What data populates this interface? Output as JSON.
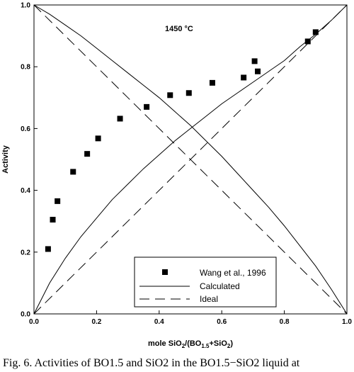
{
  "caption": "Fig. 6. Activities of BO1.5 and SiO2 in the BO1.5−SiO2 liquid at",
  "chart_data": {
    "type": "scatter",
    "annotation": "1450 °C",
    "ylabel": "Activity",
    "xlabel": {
      "p1": "mole SiO",
      "s1": "2",
      "p2": "/(BO",
      "s2": "1.5",
      "p3": "+SiO",
      "s3": "2",
      "p4": ")"
    },
    "xlim": [
      0,
      1
    ],
    "ylim": [
      0,
      1
    ],
    "xticks": [
      0.0,
      0.2,
      0.4,
      0.6,
      0.8,
      1.0
    ],
    "yticks": [
      0.0,
      0.2,
      0.4,
      0.6,
      0.8,
      1.0
    ],
    "xtick_labels": [
      "0.0",
      "0.2",
      "0.4",
      "0.6",
      "0.8",
      "1.0"
    ],
    "ytick_labels": [
      "0.0",
      "0.2",
      "0.4",
      "0.6",
      "0.8",
      "1.0"
    ],
    "grid": false,
    "legend_position": "bottom-right",
    "series": [
      {
        "name": "Wang et al., 1996",
        "kind": "scatter",
        "marker": "square",
        "x": [
          0.045,
          0.06,
          0.075,
          0.125,
          0.17,
          0.205,
          0.275,
          0.36,
          0.435,
          0.495,
          0.57,
          0.67,
          0.705,
          0.715,
          0.875,
          0.9
        ],
        "y": [
          0.21,
          0.305,
          0.365,
          0.46,
          0.518,
          0.568,
          0.632,
          0.67,
          0.708,
          0.715,
          0.748,
          0.765,
          0.818,
          0.785,
          0.882,
          0.912
        ]
      },
      {
        "name": "Calculated",
        "kind": "line",
        "style": "solid",
        "x": [
          0.0,
          0.05,
          0.1,
          0.15,
          0.2,
          0.25,
          0.3,
          0.35,
          0.4,
          0.45,
          0.5,
          0.55,
          0.6,
          0.65,
          0.7,
          0.75,
          0.8,
          0.85,
          0.9,
          0.95,
          1.0
        ],
        "y": [
          0.0,
          0.1,
          0.18,
          0.25,
          0.31,
          0.37,
          0.42,
          0.47,
          0.515,
          0.56,
          0.6,
          0.64,
          0.68,
          0.715,
          0.75,
          0.785,
          0.82,
          0.865,
          0.905,
          0.95,
          1.0
        ]
      },
      {
        "name": "",
        "kind": "line",
        "style": "solid",
        "x": [
          0.0,
          0.05,
          0.1,
          0.15,
          0.2,
          0.25,
          0.3,
          0.35,
          0.4,
          0.45,
          0.5,
          0.55,
          0.6,
          0.65,
          0.7,
          0.75,
          0.8,
          0.85,
          0.9,
          0.95,
          1.0
        ],
        "y": [
          1.0,
          0.97,
          0.935,
          0.9,
          0.86,
          0.82,
          0.78,
          0.74,
          0.7,
          0.655,
          0.61,
          0.56,
          0.51,
          0.455,
          0.4,
          0.345,
          0.285,
          0.22,
          0.155,
          0.08,
          0.0
        ]
      },
      {
        "name": "Ideal",
        "kind": "line",
        "style": "dashed",
        "x": [
          0.0,
          1.0
        ],
        "y": [
          0.0,
          1.0
        ]
      },
      {
        "name": "",
        "kind": "line",
        "style": "dashed",
        "x": [
          0.0,
          1.0
        ],
        "y": [
          1.0,
          0.0
        ]
      }
    ]
  }
}
